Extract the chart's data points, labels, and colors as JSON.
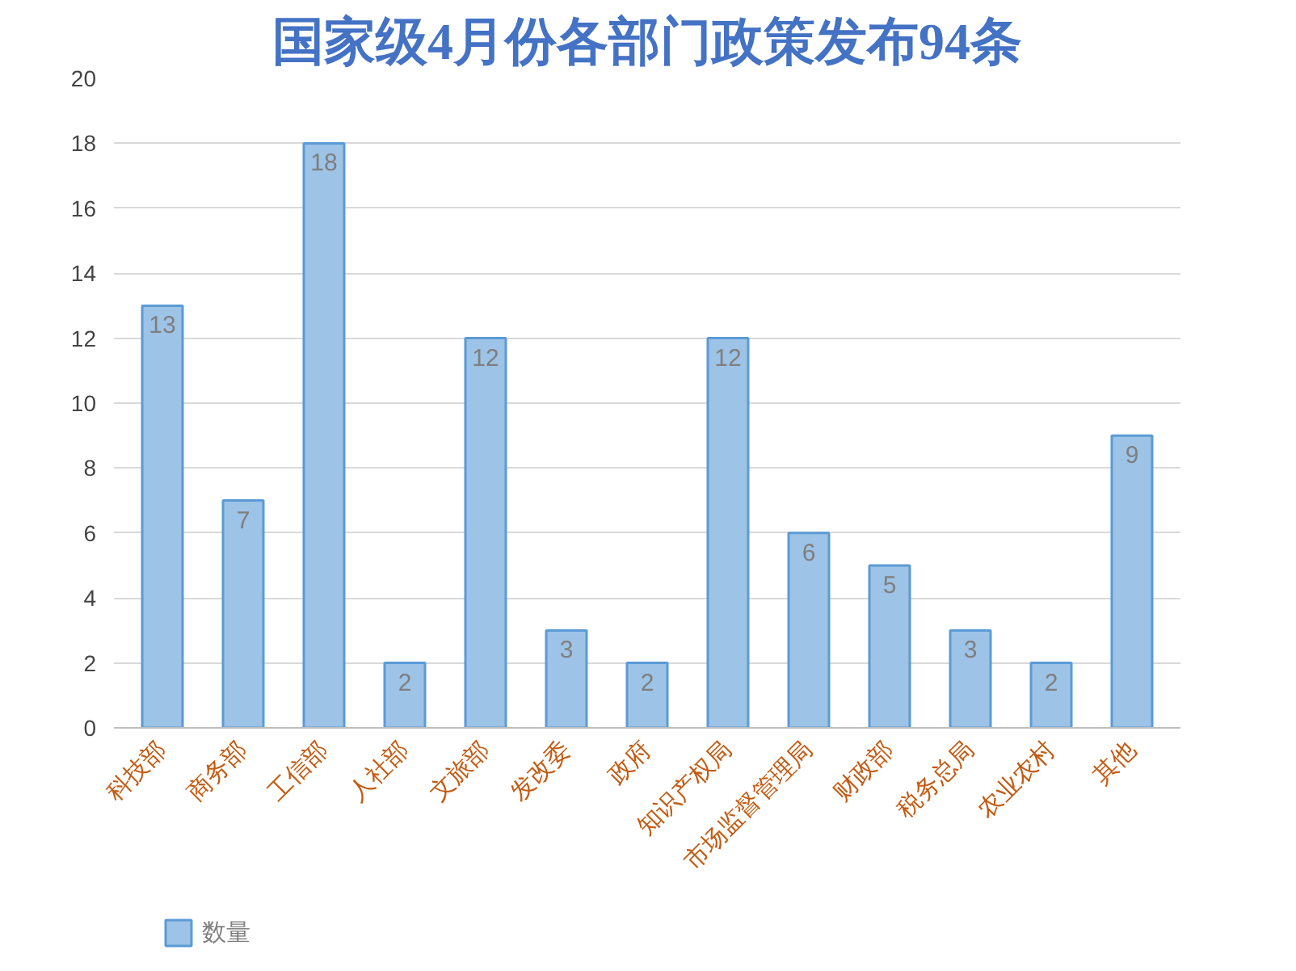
{
  "chart_data": {
    "type": "bar",
    "title": "国家级4月份各部门政策发布94条",
    "categories": [
      "科技部",
      "商务部",
      "工信部",
      "人社部",
      "文旅部",
      "发改委",
      "政府",
      "知识产权局",
      "市场监督管理局",
      "财政部",
      "税务总局",
      "农业农村",
      "其他"
    ],
    "series": [
      {
        "name": "数量",
        "color": "#9dc3e6",
        "values": [
          13,
          7,
          18,
          2,
          12,
          3,
          2,
          12,
          6,
          5,
          3,
          2,
          9
        ]
      }
    ],
    "ylim": [
      0,
      20
    ],
    "yticks": [
      0,
      2,
      4,
      6,
      8,
      10,
      12,
      14,
      16,
      18,
      20
    ],
    "grid": "y",
    "legend": "bottom left",
    "data_labels": true
  }
}
